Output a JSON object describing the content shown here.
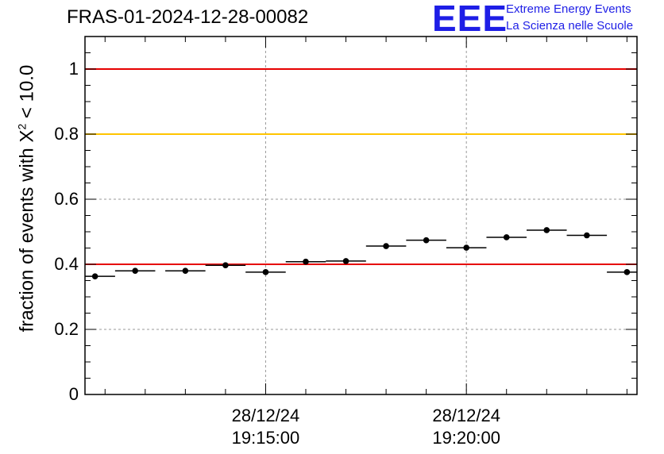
{
  "header": {
    "title": "FRAS-01-2024-12-28-00082",
    "logo_mark": "EEE",
    "logo_line1": "Extreme Energy Events",
    "logo_line2": "La Scienza nelle Scuole"
  },
  "chart_data": {
    "type": "scatter",
    "title": "FRAS-01-2024-12-28-00082",
    "ylabel_prefix": "fraction of events with X",
    "ylabel_sup": "2",
    "ylabel_suffix": " < 10.0",
    "xlabel": "",
    "ylim": [
      0,
      1.1
    ],
    "xlim_minutes": [
      0,
      13.75
    ],
    "grid": true,
    "y_ticks": [
      "0",
      "0.2",
      "0.4",
      "0.6",
      "0.8",
      "1"
    ],
    "y_tick_values": [
      0,
      0.2,
      0.4,
      0.6,
      0.8,
      1.0
    ],
    "x_ticks": [
      {
        "minute": 4.5,
        "date": "28/12/24",
        "time": "19:15:00"
      },
      {
        "minute": 9.5,
        "date": "28/12/24",
        "time": "19:20:00"
      }
    ],
    "reference_lines": [
      {
        "y": 1.0,
        "color": "#e60000"
      },
      {
        "y": 0.8,
        "color": "#ffc400"
      },
      {
        "y": 0.4,
        "color": "#e60000"
      }
    ],
    "points": [
      {
        "x_min": 0.25,
        "y": 0.363
      },
      {
        "x_min": 1.25,
        "y": 0.38
      },
      {
        "x_min": 2.5,
        "y": 0.38
      },
      {
        "x_min": 3.5,
        "y": 0.397
      },
      {
        "x_min": 4.5,
        "y": 0.376
      },
      {
        "x_min": 5.5,
        "y": 0.408
      },
      {
        "x_min": 6.5,
        "y": 0.41
      },
      {
        "x_min": 7.5,
        "y": 0.456
      },
      {
        "x_min": 8.5,
        "y": 0.474
      },
      {
        "x_min": 9.5,
        "y": 0.451
      },
      {
        "x_min": 10.5,
        "y": 0.483
      },
      {
        "x_min": 11.5,
        "y": 0.505
      },
      {
        "x_min": 12.5,
        "y": 0.489
      },
      {
        "x_min": 13.5,
        "y": 0.376
      }
    ],
    "bin_width_min": 1.0
  }
}
